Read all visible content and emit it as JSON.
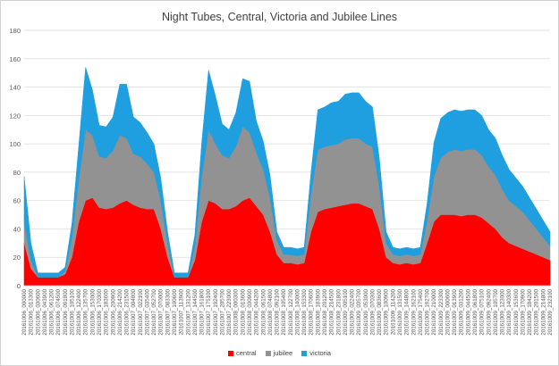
{
  "chart_data": {
    "type": "area",
    "stacked": true,
    "title": "Night Tubes, Central, Victoria and Jubilee Lines",
    "xlabel": "",
    "ylabel": "",
    "ylim": [
      0,
      180
    ],
    "yticks": [
      0,
      20,
      40,
      60,
      80,
      100,
      120,
      140,
      160,
      180
    ],
    "grid": "horizontal",
    "legend_position": "bottom",
    "categories": [
      "20161006_000000",
      "20161006_013300",
      "20161006_030600",
      "20161006_043900",
      "20161006_061200",
      "20161006_074500",
      "20161006_091800",
      "20161006_105100",
      "20161006_122400",
      "20161006_135700",
      "20161006_153000",
      "20161006_170300",
      "20161006_183600",
      "20161006_200900",
      "20161006_214200",
      "20161006_231500",
      "20161007_004800",
      "20161007_022100",
      "20161007_035400",
      "20161007_052700",
      "20161007_070000",
      "20161007_083300",
      "20161007_100600",
      "20161007_113900",
      "20161007_131200",
      "20161007_144500",
      "20161007_161800",
      "20161007_175100",
      "20161007_192400",
      "20161007_205700",
      "20161007_223000",
      "20161008_000300",
      "20161008_013600",
      "20161008_030900",
      "20161008_044200",
      "20161008_061500",
      "20161008_074800",
      "20161008_092100",
      "20161008_105400",
      "20161008_122700",
      "20161008_140000",
      "20161008_153300",
      "20161008_170600",
      "20161008_183900",
      "20161008_201200",
      "20161008_214500",
      "20161008_231800",
      "20161009_005100",
      "20161009_022400",
      "20161009_035700",
      "20161009_053000",
      "20161009_070300",
      "20161009_083600",
      "20161009_100900",
      "20161009_114200",
      "20161009_131500",
      "20161009_144800",
      "20161009_162100",
      "20161009_175400",
      "20161009_192700",
      "20161009_210000",
      "20161009_223300",
      "20161009_000600",
      "20161009_013900",
      "20161009_031200",
      "20161009_044500",
      "20161009_061800",
      "20161009_075100",
      "20161009_092400",
      "20161009_105700",
      "20161009_123000",
      "20161009_140300",
      "20161009_153600",
      "20161009_170900",
      "20161009_184200",
      "20161009_201500",
      "20161009_214800",
      "20161009_232100"
    ],
    "series": [
      {
        "name": "central",
        "color": "#ff0000",
        "values": [
          30,
          12,
          6,
          6,
          6,
          6,
          8,
          20,
          45,
          60,
          62,
          55,
          54,
          55,
          58,
          60,
          57,
          55,
          54,
          54,
          40,
          20,
          6,
          6,
          6,
          18,
          45,
          60,
          58,
          54,
          54,
          56,
          60,
          62,
          56,
          50,
          38,
          22,
          16,
          16,
          15,
          16,
          38,
          52,
          54,
          55,
          56,
          57,
          58,
          58,
          56,
          54,
          40,
          20,
          16,
          15,
          16,
          15,
          16,
          30,
          45,
          50,
          50,
          50,
          49,
          50,
          50,
          48,
          44,
          40,
          34,
          30,
          28,
          26,
          24,
          22,
          20,
          18
        ]
      },
      {
        "name": "jubilee",
        "color": "#929292",
        "values": [
          15,
          6,
          0,
          0,
          0,
          0,
          2,
          14,
          30,
          50,
          44,
          36,
          36,
          40,
          48,
          44,
          36,
          36,
          32,
          26,
          20,
          10,
          0,
          0,
          0,
          10,
          32,
          50,
          42,
          38,
          36,
          42,
          52,
          46,
          38,
          32,
          24,
          10,
          6,
          6,
          6,
          6,
          26,
          44,
          44,
          44,
          44,
          46,
          46,
          46,
          44,
          44,
          30,
          10,
          6,
          6,
          6,
          6,
          6,
          16,
          32,
          40,
          44,
          46,
          46,
          46,
          46,
          44,
          40,
          38,
          34,
          30,
          28,
          26,
          22,
          18,
          14,
          10
        ]
      },
      {
        "name": "victoria",
        "color": "#1f9ee0",
        "values": [
          32,
          12,
          3,
          3,
          3,
          3,
          3,
          10,
          24,
          44,
          32,
          22,
          22,
          24,
          36,
          38,
          26,
          24,
          22,
          20,
          16,
          8,
          3,
          3,
          3,
          8,
          24,
          42,
          34,
          22,
          20,
          24,
          34,
          36,
          22,
          20,
          16,
          6,
          5,
          5,
          5,
          5,
          16,
          28,
          28,
          30,
          30,
          32,
          32,
          32,
          30,
          28,
          20,
          8,
          5,
          5,
          5,
          5,
          5,
          12,
          24,
          28,
          28,
          28,
          28,
          28,
          28,
          28,
          26,
          26,
          24,
          22,
          20,
          18,
          16,
          14,
          12,
          10
        ]
      }
    ]
  },
  "legend": {
    "central": "central",
    "jubilee": "jubilee",
    "victoria": "victoria"
  }
}
